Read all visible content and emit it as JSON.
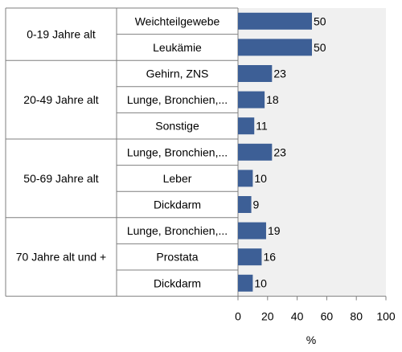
{
  "chart_data": {
    "type": "bar",
    "orientation": "horizontal",
    "title": "",
    "xlabel": "%",
    "ylabel": "",
    "xlim": [
      0,
      100
    ],
    "xticks": [
      0,
      20,
      40,
      60,
      80,
      100
    ],
    "bar_color": "#3d5f96",
    "plot_background": "#f0f0f0",
    "groups": [
      {
        "label": "0-19 Jahre alt",
        "categories": [
          {
            "label": "Weichteilgewebe",
            "value": 50
          },
          {
            "label": "Leukämie",
            "value": 50
          }
        ]
      },
      {
        "label": "20-49 Jahre alt",
        "categories": [
          {
            "label": "Gehirn, ZNS",
            "value": 23
          },
          {
            "label": "Lunge, Bronchien,...",
            "value": 18
          },
          {
            "label": "Sonstige",
            "value": 11
          }
        ]
      },
      {
        "label": "50-69 Jahre alt",
        "categories": [
          {
            "label": "Lunge, Bronchien,...",
            "value": 23
          },
          {
            "label": "Leber",
            "value": 10
          },
          {
            "label": "Dickdarm",
            "value": 9
          }
        ]
      },
      {
        "label": "70 Jahre alt und +",
        "categories": [
          {
            "label": "Lunge, Bronchien,...",
            "value": 19
          },
          {
            "label": "Prostata",
            "value": 16
          },
          {
            "label": "Dickdarm",
            "value": 10
          }
        ]
      }
    ]
  }
}
